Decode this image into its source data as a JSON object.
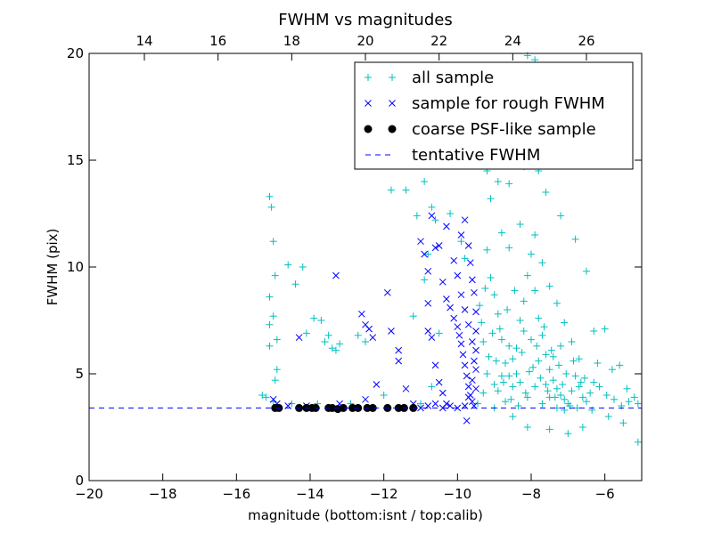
{
  "chart_data": {
    "type": "scatter",
    "title": "FWHM vs magnitudes",
    "xlabel": "magnitude (bottom:isnt / top:calib)",
    "ylabel": "FWHM (pix)",
    "xlim": [
      -20,
      -5
    ],
    "ylim": [
      0,
      20
    ],
    "x_ticks": [
      -20,
      -18,
      -16,
      -14,
      -12,
      -10,
      -8,
      -6
    ],
    "x_tick_labels": [
      "−20",
      "−18",
      "−16",
      "−14",
      "−12",
      "−10",
      "−8",
      "−6"
    ],
    "y_ticks": [
      0,
      5,
      10,
      15,
      20
    ],
    "y_tick_labels": [
      "0",
      "5",
      "10",
      "15",
      "20"
    ],
    "top_axis": {
      "xlim": [
        12.5,
        27.5
      ],
      "ticks": [
        14,
        16,
        18,
        20,
        22,
        24,
        26
      ],
      "tick_labels": [
        "14",
        "16",
        "18",
        "20",
        "22",
        "24",
        "26"
      ]
    },
    "grid": false,
    "legend_position": "top-right",
    "series": [
      {
        "name": "all sample",
        "marker": "plus",
        "color": "#00bfbf",
        "points": [
          [
            -15.1,
            13.3
          ],
          [
            -15.05,
            12.8
          ],
          [
            -15.0,
            11.2
          ],
          [
            -14.95,
            9.6
          ],
          [
            -15.1,
            8.6
          ],
          [
            -15.0,
            7.7
          ],
          [
            -15.1,
            7.3
          ],
          [
            -14.9,
            6.6
          ],
          [
            -15.1,
            6.3
          ],
          [
            -14.9,
            5.2
          ],
          [
            -14.95,
            4.7
          ],
          [
            -15.3,
            4.0
          ],
          [
            -15.2,
            3.9
          ],
          [
            -15.0,
            3.7
          ],
          [
            -14.6,
            10.1
          ],
          [
            -14.4,
            9.2
          ],
          [
            -14.2,
            10.0
          ],
          [
            -13.9,
            7.6
          ],
          [
            -13.7,
            7.5
          ],
          [
            -13.6,
            6.5
          ],
          [
            -13.5,
            6.8
          ],
          [
            -13.4,
            6.2
          ],
          [
            -13.3,
            6.1
          ],
          [
            -13.2,
            6.4
          ],
          [
            -14.1,
            6.9
          ],
          [
            -12.7,
            6.8
          ],
          [
            -12.5,
            6.5
          ],
          [
            -11.8,
            13.6
          ],
          [
            -11.4,
            13.6
          ],
          [
            -11.1,
            12.4
          ],
          [
            -10.9,
            14.0
          ],
          [
            -10.7,
            12.8
          ],
          [
            -10.6,
            12.2
          ],
          [
            -10.8,
            10.6
          ],
          [
            -10.9,
            9.4
          ],
          [
            -11.2,
            7.7
          ],
          [
            -10.5,
            6.9
          ],
          [
            -10.7,
            4.4
          ],
          [
            -11.0,
            3.6
          ],
          [
            -12.0,
            4.0
          ],
          [
            -12.9,
            3.6
          ],
          [
            -13.8,
            3.6
          ],
          [
            -14.5,
            3.6
          ],
          [
            -10.2,
            12.5
          ],
          [
            -9.9,
            11.2
          ],
          [
            -9.8,
            10.4
          ],
          [
            -9.6,
            16.9
          ],
          [
            -9.4,
            15.2
          ],
          [
            -9.2,
            14.5
          ],
          [
            -9.1,
            13.2
          ],
          [
            -9.0,
            17.8
          ],
          [
            -8.9,
            14.0
          ],
          [
            -8.6,
            13.9
          ],
          [
            -8.4,
            15.6
          ],
          [
            -8.2,
            14.7
          ],
          [
            -8.1,
            19.9
          ],
          [
            -7.9,
            19.7
          ],
          [
            -7.8,
            14.5
          ],
          [
            -7.6,
            13.5
          ],
          [
            -7.4,
            14.8
          ],
          [
            -7.2,
            12.4
          ],
          [
            -6.8,
            11.3
          ],
          [
            -6.5,
            9.8
          ],
          [
            -6.3,
            7.0
          ],
          [
            -6.0,
            7.1
          ],
          [
            -6.2,
            5.5
          ],
          [
            -5.8,
            5.2
          ],
          [
            -5.6,
            5.4
          ],
          [
            -5.4,
            4.3
          ],
          [
            -5.2,
            3.9
          ],
          [
            -5.1,
            3.6
          ],
          [
            -5.1,
            1.8
          ],
          [
            -5.5,
            2.7
          ],
          [
            -5.9,
            3.0
          ],
          [
            -6.6,
            2.5
          ],
          [
            -7.0,
            2.2
          ],
          [
            -7.5,
            2.4
          ],
          [
            -8.1,
            2.5
          ],
          [
            -8.5,
            3.0
          ],
          [
            -9.0,
            3.4
          ],
          [
            -9.2,
            5.0
          ],
          [
            -9.3,
            6.5
          ],
          [
            -9.4,
            8.2
          ],
          [
            -9.35,
            7.4
          ],
          [
            -9.25,
            9.0
          ],
          [
            -9.2,
            10.8
          ],
          [
            -9.1,
            9.5
          ],
          [
            -9.0,
            8.7
          ],
          [
            -8.9,
            7.8
          ],
          [
            -8.8,
            6.6
          ],
          [
            -8.7,
            5.5
          ],
          [
            -8.6,
            4.9
          ],
          [
            -8.5,
            4.4
          ],
          [
            -8.4,
            6.2
          ],
          [
            -8.3,
            7.5
          ],
          [
            -8.2,
            8.4
          ],
          [
            -8.1,
            9.6
          ],
          [
            -8.0,
            10.6
          ],
          [
            -7.9,
            8.9
          ],
          [
            -7.8,
            7.6
          ],
          [
            -7.7,
            6.8
          ],
          [
            -7.6,
            5.9
          ],
          [
            -7.5,
            5.2
          ],
          [
            -7.4,
            4.7
          ],
          [
            -7.3,
            4.3
          ],
          [
            -7.2,
            4.0
          ],
          [
            -7.1,
            3.8
          ],
          [
            -7.0,
            3.6
          ],
          [
            -6.9,
            4.2
          ],
          [
            -6.8,
            4.9
          ],
          [
            -6.7,
            4.4
          ],
          [
            -6.6,
            3.9
          ],
          [
            -6.5,
            3.7
          ],
          [
            -6.4,
            4.1
          ],
          [
            -6.3,
            4.6
          ],
          [
            -8.8,
            11.6
          ],
          [
            -8.6,
            10.9
          ],
          [
            -8.3,
            12.0
          ],
          [
            -7.9,
            11.5
          ],
          [
            -7.7,
            10.2
          ],
          [
            -7.5,
            9.1
          ],
          [
            -7.3,
            8.3
          ],
          [
            -7.1,
            7.4
          ],
          [
            -6.9,
            6.5
          ],
          [
            -6.7,
            5.7
          ],
          [
            -8.95,
            5.6
          ],
          [
            -8.75,
            4.6
          ],
          [
            -8.55,
            3.8
          ],
          [
            -8.35,
            3.5
          ],
          [
            -8.15,
            4.1
          ],
          [
            -7.95,
            5.3
          ],
          [
            -7.75,
            4.8
          ],
          [
            -7.55,
            4.2
          ],
          [
            -7.35,
            3.9
          ],
          [
            -7.15,
            4.5
          ],
          [
            -6.95,
            3.5
          ],
          [
            -6.75,
            3.4
          ],
          [
            -6.55,
            4.8
          ],
          [
            -6.35,
            3.3
          ],
          [
            -6.15,
            4.4
          ],
          [
            -5.95,
            4.0
          ],
          [
            -5.75,
            3.8
          ],
          [
            -5.55,
            3.5
          ],
          [
            -5.35,
            3.7
          ],
          [
            -9.45,
            3.6
          ],
          [
            -9.3,
            4.1
          ],
          [
            -9.15,
            5.8
          ],
          [
            -9.05,
            6.9
          ],
          [
            -8.85,
            7.1
          ],
          [
            -8.65,
            8.0
          ],
          [
            -8.45,
            8.9
          ],
          [
            -8.25,
            6.0
          ],
          [
            -8.05,
            5.1
          ],
          [
            -7.85,
            6.3
          ],
          [
            -7.65,
            7.2
          ],
          [
            -7.45,
            6.1
          ],
          [
            -7.25,
            5.4
          ],
          [
            -7.05,
            5.0
          ],
          [
            -6.85,
            5.6
          ],
          [
            -6.65,
            4.6
          ],
          [
            -8.9,
            4.2
          ],
          [
            -8.7,
            3.7
          ],
          [
            -8.5,
            5.7
          ],
          [
            -8.3,
            4.6
          ],
          [
            -8.1,
            3.9
          ],
          [
            -7.9,
            4.4
          ],
          [
            -7.7,
            3.6
          ],
          [
            -7.5,
            3.9
          ],
          [
            -7.3,
            3.4
          ],
          [
            -7.1,
            3.3
          ],
          [
            -8.0,
            6.6
          ],
          [
            -8.2,
            7.0
          ],
          [
            -7.8,
            5.6
          ],
          [
            -7.6,
            4.5
          ],
          [
            -7.4,
            5.8
          ],
          [
            -8.6,
            6.3
          ],
          [
            -8.4,
            5.0
          ],
          [
            -8.8,
            4.9
          ],
          [
            -9.0,
            4.5
          ],
          [
            -7.2,
            6.3
          ]
        ]
      },
      {
        "name": "sample for rough FWHM",
        "marker": "cross",
        "color": "#0000ff",
        "points": [
          [
            -15.0,
            3.8
          ],
          [
            -14.9,
            3.6
          ],
          [
            -14.6,
            3.5
          ],
          [
            -14.3,
            6.7
          ],
          [
            -14.1,
            3.5
          ],
          [
            -13.3,
            9.6
          ],
          [
            -13.2,
            3.6
          ],
          [
            -12.6,
            7.8
          ],
          [
            -12.5,
            7.3
          ],
          [
            -12.4,
            7.1
          ],
          [
            -12.3,
            6.7
          ],
          [
            -12.2,
            4.5
          ],
          [
            -12.5,
            3.8
          ],
          [
            -11.9,
            8.8
          ],
          [
            -11.8,
            7.0
          ],
          [
            -11.6,
            6.1
          ],
          [
            -11.6,
            5.6
          ],
          [
            -11.4,
            4.3
          ],
          [
            -11.2,
            3.6
          ],
          [
            -11.0,
            11.2
          ],
          [
            -10.9,
            10.6
          ],
          [
            -10.8,
            8.3
          ],
          [
            -10.8,
            7.0
          ],
          [
            -10.7,
            6.7
          ],
          [
            -10.6,
            5.4
          ],
          [
            -10.5,
            4.6
          ],
          [
            -10.4,
            4.1
          ],
          [
            -10.3,
            3.6
          ],
          [
            -10.8,
            9.8
          ],
          [
            -10.6,
            10.9
          ],
          [
            -10.4,
            9.3
          ],
          [
            -10.3,
            8.5
          ],
          [
            -10.2,
            8.1
          ],
          [
            -10.1,
            7.6
          ],
          [
            -10.0,
            7.2
          ],
          [
            -9.95,
            6.8
          ],
          [
            -9.9,
            6.4
          ],
          [
            -9.85,
            5.9
          ],
          [
            -9.8,
            5.4
          ],
          [
            -9.75,
            4.9
          ],
          [
            -9.7,
            4.4
          ],
          [
            -9.65,
            4.0
          ],
          [
            -9.6,
            3.7
          ],
          [
            -9.55,
            3.5
          ],
          [
            -9.9,
            11.5
          ],
          [
            -9.8,
            12.2
          ],
          [
            -9.7,
            11.0
          ],
          [
            -9.65,
            10.2
          ],
          [
            -9.6,
            9.4
          ],
          [
            -9.55,
            8.8
          ],
          [
            -9.5,
            7.9
          ],
          [
            -9.5,
            7.0
          ],
          [
            -9.5,
            6.1
          ],
          [
            -9.5,
            5.2
          ],
          [
            -9.5,
            4.3
          ],
          [
            -10.1,
            10.3
          ],
          [
            -10.0,
            9.6
          ],
          [
            -9.9,
            8.7
          ],
          [
            -9.8,
            8.0
          ],
          [
            -9.7,
            7.3
          ],
          [
            -9.6,
            6.5
          ],
          [
            -9.55,
            5.6
          ],
          [
            -9.6,
            4.7
          ],
          [
            -9.7,
            3.9
          ],
          [
            -9.8,
            3.5
          ],
          [
            -10.0,
            3.4
          ],
          [
            -10.2,
            3.5
          ],
          [
            -10.4,
            3.4
          ],
          [
            -10.6,
            3.6
          ],
          [
            -10.8,
            3.5
          ],
          [
            -11.0,
            3.4
          ],
          [
            -9.75,
            2.8
          ],
          [
            -10.5,
            11.0
          ],
          [
            -10.3,
            11.9
          ],
          [
            -10.7,
            12.4
          ]
        ]
      },
      {
        "name": "coarse PSF-like sample",
        "marker": "circle",
        "color": "#000000",
        "points": [
          [
            -14.95,
            3.4
          ],
          [
            -14.85,
            3.4
          ],
          [
            -14.3,
            3.4
          ],
          [
            -14.1,
            3.4
          ],
          [
            -13.95,
            3.4
          ],
          [
            -13.85,
            3.4
          ],
          [
            -13.5,
            3.4
          ],
          [
            -13.4,
            3.4
          ],
          [
            -13.25,
            3.35
          ],
          [
            -13.1,
            3.4
          ],
          [
            -12.85,
            3.4
          ],
          [
            -12.7,
            3.4
          ],
          [
            -12.45,
            3.4
          ],
          [
            -12.3,
            3.4
          ],
          [
            -11.9,
            3.4
          ],
          [
            -11.6,
            3.4
          ],
          [
            -11.45,
            3.4
          ],
          [
            -11.2,
            3.4
          ]
        ]
      },
      {
        "name": "tentative FWHM",
        "marker": "dashed-line",
        "color": "#0000ff",
        "y": 3.4
      }
    ]
  }
}
